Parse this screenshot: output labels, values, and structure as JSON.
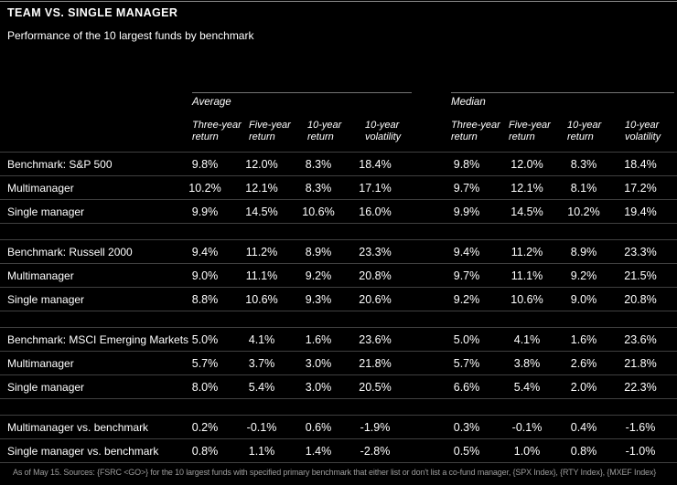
{
  "footer": {
    "text": "As of May 15. Sources: {FSRC <GO>} for the 10 largest funds with specified primary benchmark that either list or don't list a co-fund manager, {SPX Index}, {RTY Index}, {MXEF Index}"
  },
  "colors": {
    "background": "#000000",
    "text": "#ffffff",
    "top_rule": "#8c8c8c",
    "section_rule": "#757575",
    "row_rule": "#404040",
    "footer_text": "#9b9b9b"
  },
  "chart_data": {
    "type": "table",
    "title": "TEAM VS. SINGLE MANAGER",
    "subtitle": "Performance of the 10 largest funds by benchmark",
    "column_groups": [
      "Average",
      "Median"
    ],
    "columns": [
      "Three-year return",
      "Five-year return",
      "10-year return",
      "10-year volatility"
    ],
    "groups": [
      {
        "rows": [
          {
            "label": "Benchmark: S&P 500",
            "average": [
              "9.8%",
              "12.0%",
              "8.3%",
              "18.4%"
            ],
            "median": [
              "9.8%",
              "12.0%",
              "8.3%",
              "18.4%"
            ]
          },
          {
            "label": "Multimanager",
            "average": [
              "10.2%",
              "12.1%",
              "8.3%",
              "17.1%"
            ],
            "median": [
              "9.7%",
              "12.1%",
              "8.1%",
              "17.2%"
            ]
          },
          {
            "label": "Single manager",
            "average": [
              "9.9%",
              "14.5%",
              "10.6%",
              "16.0%"
            ],
            "median": [
              "9.9%",
              "14.5%",
              "10.2%",
              "19.4%"
            ]
          }
        ]
      },
      {
        "rows": [
          {
            "label": "Benchmark: Russell 2000",
            "average": [
              "9.4%",
              "11.2%",
              "8.9%",
              "23.3%"
            ],
            "median": [
              "9.4%",
              "11.2%",
              "8.9%",
              "23.3%"
            ]
          },
          {
            "label": "Multimanager",
            "average": [
              "9.0%",
              "11.1%",
              "9.2%",
              "20.8%"
            ],
            "median": [
              "9.7%",
              "11.1%",
              "9.2%",
              "21.5%"
            ]
          },
          {
            "label": "Single manager",
            "average": [
              "8.8%",
              "10.6%",
              "9.3%",
              "20.6%"
            ],
            "median": [
              "9.2%",
              "10.6%",
              "9.0%",
              "20.8%"
            ]
          }
        ]
      },
      {
        "rows": [
          {
            "label": "Benchmark: MSCI Emerging Markets",
            "average": [
              "5.0%",
              "4.1%",
              "1.6%",
              "23.6%"
            ],
            "median": [
              "5.0%",
              "4.1%",
              "1.6%",
              "23.6%"
            ]
          },
          {
            "label": "Multimanager",
            "average": [
              "5.7%",
              "3.7%",
              "3.0%",
              "21.8%"
            ],
            "median": [
              "5.7%",
              "3.8%",
              "2.6%",
              "21.8%"
            ]
          },
          {
            "label": "Single manager",
            "average": [
              "8.0%",
              "5.4%",
              "3.0%",
              "20.5%"
            ],
            "median": [
              "6.6%",
              "5.4%",
              "2.0%",
              "22.3%"
            ]
          }
        ]
      },
      {
        "rows": [
          {
            "label": "Multimanager vs. benchmark",
            "average": [
              "0.2%",
              "-0.1%",
              "0.6%",
              "-1.9%"
            ],
            "median": [
              "0.3%",
              "-0.1%",
              "0.4%",
              "-1.6%"
            ]
          },
          {
            "label": "Single manager vs. benchmark",
            "average": [
              "0.8%",
              "1.1%",
              "1.4%",
              "-2.8%"
            ],
            "median": [
              "0.5%",
              "1.0%",
              "0.8%",
              "-1.0%"
            ]
          }
        ]
      }
    ]
  }
}
